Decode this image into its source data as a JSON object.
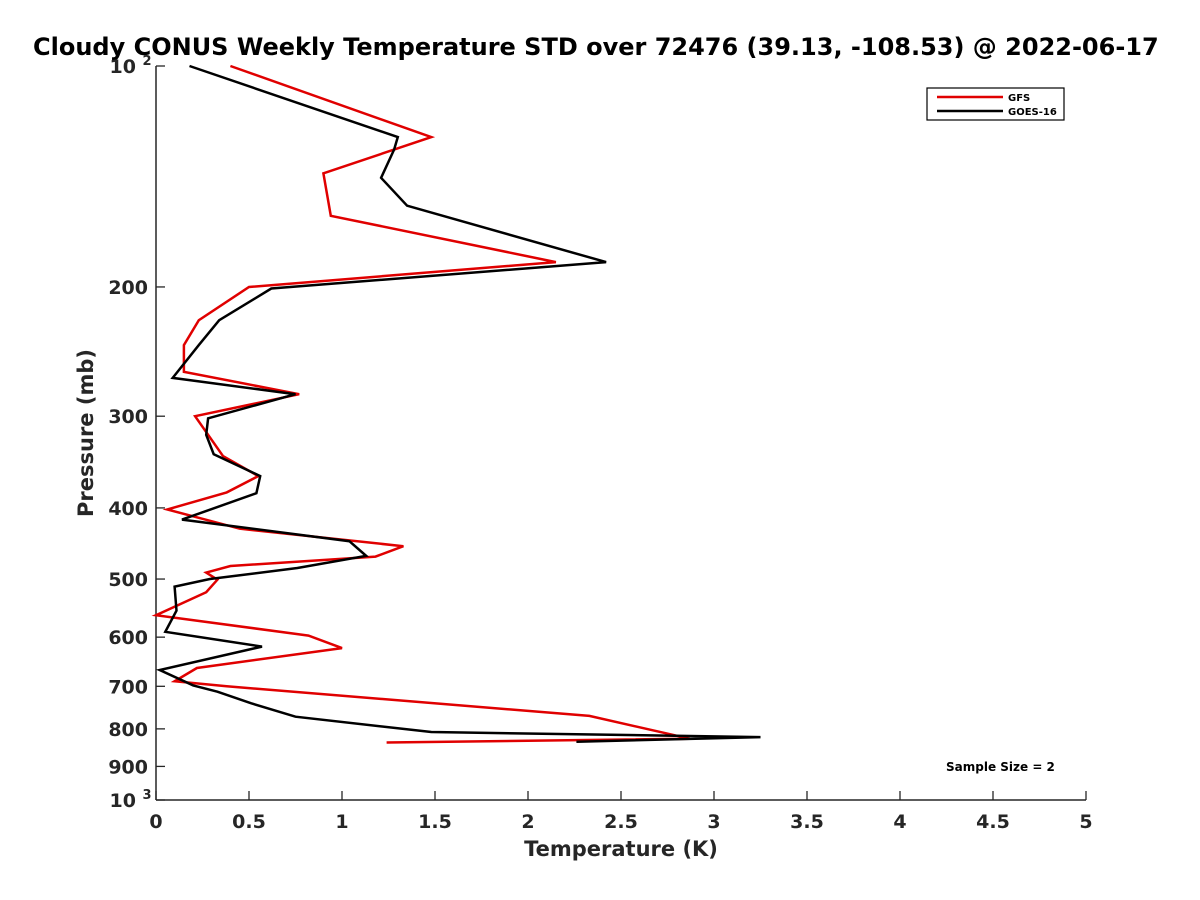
{
  "chart_data": {
    "type": "line",
    "title": "Cloudy CONUS Weekly Temperature STD over 72476 (39.13, -108.53) @ 2022-06-17",
    "xlabel": "Temperature (K)",
    "ylabel": "Pressure (mb)",
    "xlim": [
      0,
      5
    ],
    "ylim": [
      100,
      1000
    ],
    "y_scale": "log",
    "y_reversed": true,
    "x_ticks": [
      "0",
      "0.5",
      "1",
      "1.5",
      "2",
      "2.5",
      "3",
      "3.5",
      "4",
      "4.5",
      "5"
    ],
    "y_ticks": [
      {
        "value": 100,
        "base": "10",
        "exp": "2"
      },
      {
        "value": 200,
        "label": "200"
      },
      {
        "value": 300,
        "label": "300"
      },
      {
        "value": 400,
        "label": "400"
      },
      {
        "value": 500,
        "label": "500"
      },
      {
        "value": 600,
        "label": "600"
      },
      {
        "value": 700,
        "label": "700"
      },
      {
        "value": 800,
        "label": "800"
      },
      {
        "value": 900,
        "label": "900"
      },
      {
        "value": 1000,
        "base": "10",
        "exp": "3"
      }
    ],
    "grid": false,
    "legend_position": "top-right",
    "annotation": "Sample Size = 2",
    "series": [
      {
        "name": "GFS",
        "color": "#e00000",
        "points": [
          [
            0.4,
            100
          ],
          [
            1.48,
            125
          ],
          [
            0.9,
            140
          ],
          [
            0.94,
            160
          ],
          [
            2.15,
            185
          ],
          [
            0.5,
            200
          ],
          [
            0.23,
            222
          ],
          [
            0.15,
            240
          ],
          [
            0.15,
            261
          ],
          [
            0.77,
            280
          ],
          [
            0.21,
            300
          ],
          [
            0.36,
            340
          ],
          [
            0.55,
            362
          ],
          [
            0.38,
            381
          ],
          [
            0.06,
            402
          ],
          [
            0.45,
            427
          ],
          [
            1.33,
            451
          ],
          [
            1.18,
            466
          ],
          [
            0.4,
            480
          ],
          [
            0.27,
            490
          ],
          [
            0.33,
            501
          ],
          [
            0.27,
            521
          ],
          [
            0.0,
            560
          ],
          [
            0.82,
            597
          ],
          [
            1.0,
            621
          ],
          [
            0.22,
            661
          ],
          [
            0.1,
            689
          ],
          [
            0.38,
            700
          ],
          [
            2.33,
            768
          ],
          [
            2.87,
            825
          ],
          [
            1.24,
            835
          ]
        ]
      },
      {
        "name": "GOES-16",
        "color": "#000000",
        "points": [
          [
            0.18,
            100
          ],
          [
            1.3,
            125
          ],
          [
            1.28,
            130
          ],
          [
            1.21,
            142
          ],
          [
            1.35,
            155
          ],
          [
            2.42,
            185
          ],
          [
            0.62,
            201
          ],
          [
            0.34,
            222
          ],
          [
            0.23,
            240
          ],
          [
            0.09,
            266
          ],
          [
            0.75,
            280
          ],
          [
            0.28,
            302
          ],
          [
            0.27,
            318
          ],
          [
            0.31,
            338
          ],
          [
            0.56,
            362
          ],
          [
            0.54,
            382
          ],
          [
            0.14,
            415
          ],
          [
            1.04,
            444
          ],
          [
            1.13,
            465
          ],
          [
            0.76,
            483
          ],
          [
            0.29,
            500
          ],
          [
            0.1,
            512
          ],
          [
            0.11,
            552
          ],
          [
            0.05,
            590
          ],
          [
            0.57,
            618
          ],
          [
            0.02,
            665
          ],
          [
            0.2,
            698
          ],
          [
            0.33,
            712
          ],
          [
            0.51,
            738
          ],
          [
            0.75,
            770
          ],
          [
            1.48,
            808
          ],
          [
            3.25,
            821
          ],
          [
            2.26,
            833
          ]
        ]
      }
    ]
  }
}
